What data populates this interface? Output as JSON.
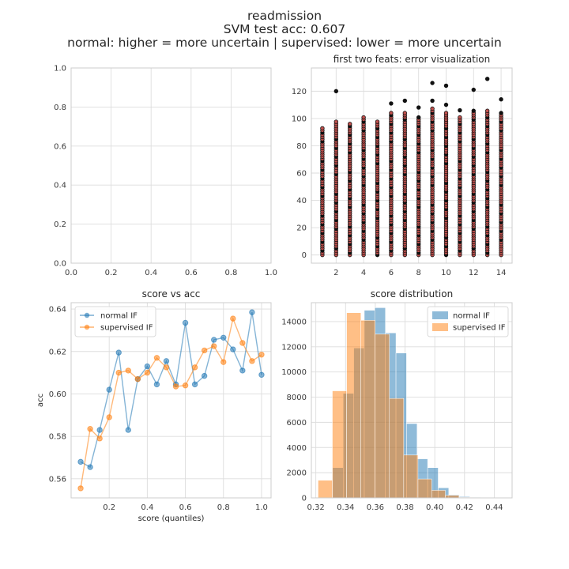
{
  "suptitle": {
    "line1": "readmission",
    "line2": "SVM test acc: 0.607",
    "line3": "normal: higher = more uncertain | supervised: lower = more uncertain"
  },
  "colors": {
    "normal": "#1f77b4",
    "supervised": "#ff7f0e",
    "grid": "#dddddd",
    "axes_edge": "#cccccc",
    "text": "#262626",
    "tick_text": "#3a3a3a"
  },
  "chart_data": [
    {
      "id": "empty",
      "type": "scatter",
      "title": "",
      "xlim": [
        0,
        1
      ],
      "ylim": [
        0,
        1
      ],
      "xticks": [
        0.0,
        0.2,
        0.4,
        0.6,
        0.8,
        1.0
      ],
      "yticks": [
        0.0,
        0.2,
        0.4,
        0.6,
        0.8,
        1.0
      ],
      "xtick_labels": [
        "0.0",
        "0.2",
        "0.4",
        "0.6",
        "0.8",
        "1.0"
      ],
      "ytick_labels": [
        "0.0",
        "0.2",
        "0.4",
        "0.6",
        "0.8",
        "1.0"
      ],
      "grid": true
    },
    {
      "id": "errviz",
      "type": "scatter",
      "title": "first two feats: error visualization",
      "xlim": [
        0.2,
        14.8
      ],
      "ylim": [
        -6,
        137
      ],
      "xticks": [
        2,
        4,
        6,
        8,
        10,
        12,
        14
      ],
      "yticks": [
        0,
        20,
        40,
        60,
        80,
        100,
        120
      ],
      "xtick_labels": [
        "2",
        "4",
        "6",
        "8",
        "10",
        "12",
        "14"
      ],
      "ytick_labels": [
        "0",
        "20",
        "40",
        "60",
        "80",
        "100",
        "120"
      ],
      "grid": true,
      "point_colors": {
        "correct": "#111111",
        "error": "#c0504d"
      },
      "columns": [
        {
          "x": 1,
          "ymax": 94,
          "outliers": []
        },
        {
          "x": 2,
          "ymax": 98,
          "outliers": [
            120
          ]
        },
        {
          "x": 3,
          "ymax": 97,
          "outliers": []
        },
        {
          "x": 4,
          "ymax": 102,
          "outliers": []
        },
        {
          "x": 5,
          "ymax": 98,
          "outliers": []
        },
        {
          "x": 6,
          "ymax": 104,
          "outliers": [
            111
          ]
        },
        {
          "x": 7,
          "ymax": 104,
          "outliers": [
            113
          ]
        },
        {
          "x": 8,
          "ymax": 102,
          "outliers": [
            108
          ]
        },
        {
          "x": 9,
          "ymax": 108,
          "outliers": [
            126,
            113
          ]
        },
        {
          "x": 10,
          "ymax": 104,
          "outliers": [
            124,
            110
          ]
        },
        {
          "x": 11,
          "ymax": 102,
          "outliers": [
            106
          ]
        },
        {
          "x": 12,
          "ymax": 106,
          "outliers": [
            121
          ]
        },
        {
          "x": 13,
          "ymax": 106,
          "outliers": [
            129
          ]
        },
        {
          "x": 14,
          "ymax": 104,
          "outliers": [
            114
          ]
        }
      ]
    },
    {
      "id": "scoreacc",
      "type": "line",
      "title": "score vs acc",
      "xlabel": "score (quantiles)",
      "ylabel": "acc",
      "xlim": [
        0.0,
        1.05
      ],
      "ylim": [
        0.551,
        0.643
      ],
      "xticks": [
        0.2,
        0.4,
        0.6,
        0.8,
        1.0
      ],
      "yticks": [
        0.56,
        0.58,
        0.6,
        0.62,
        0.64
      ],
      "xtick_labels": [
        "0.2",
        "0.4",
        "0.6",
        "0.8",
        "1.0"
      ],
      "ytick_labels": [
        "0.56",
        "0.58",
        "0.60",
        "0.62",
        "0.64"
      ],
      "grid": true,
      "legend": "top-left",
      "x": [
        0.05,
        0.1,
        0.15,
        0.2,
        0.25,
        0.3,
        0.35,
        0.4,
        0.45,
        0.5,
        0.55,
        0.6,
        0.65,
        0.7,
        0.75,
        0.8,
        0.85,
        0.9,
        0.95,
        1.0
      ],
      "series": [
        {
          "name": "normal IF",
          "color": "#1f77b4",
          "values": [
            0.568,
            0.5655,
            0.583,
            0.602,
            0.6195,
            0.583,
            0.607,
            0.613,
            0.6045,
            0.6155,
            0.6045,
            0.6335,
            0.6045,
            0.6085,
            0.6255,
            0.6265,
            0.621,
            0.611,
            0.6385,
            0.609
          ]
        },
        {
          "name": "supervised IF",
          "color": "#ff7f0e",
          "values": [
            0.5555,
            0.5835,
            0.579,
            0.589,
            0.61,
            0.611,
            0.607,
            0.61,
            0.617,
            0.6125,
            0.6035,
            0.604,
            0.6125,
            0.6205,
            0.6225,
            0.615,
            0.6355,
            0.624,
            0.6155,
            0.6185
          ]
        }
      ]
    },
    {
      "id": "scoredist",
      "type": "bar",
      "title": "score distribution",
      "xlim": [
        0.317,
        0.452
      ],
      "ylim": [
        0,
        15500
      ],
      "xticks": [
        0.32,
        0.34,
        0.36,
        0.38,
        0.4,
        0.42,
        0.44
      ],
      "yticks": [
        0,
        2000,
        4000,
        6000,
        8000,
        10000,
        12000,
        14000
      ],
      "xtick_labels": [
        "0.32",
        "0.34",
        "0.36",
        "0.38",
        "0.40",
        "0.42",
        "0.44"
      ],
      "ytick_labels": [
        "0",
        "2000",
        "4000",
        "6000",
        "8000",
        "10000",
        "12000",
        "14000"
      ],
      "grid": true,
      "legend": "top-right",
      "series": [
        {
          "name": "normal IF",
          "color": "#1f77b4",
          "edges": [
            0.3313,
            0.3384,
            0.3455,
            0.3526,
            0.3597,
            0.3668,
            0.3739,
            0.381,
            0.3881,
            0.3952,
            0.4023,
            0.4094,
            0.4165,
            0.4236,
            0.4307,
            0.4378
          ],
          "counts": [
            2400,
            8300,
            11900,
            14900,
            15100,
            13100,
            11500,
            5900,
            3100,
            2400,
            800,
            250,
            100,
            40,
            10
          ]
        },
        {
          "name": "supervised IF",
          "color": "#ff7f0e",
          "edges": [
            0.3215,
            0.3311,
            0.3407,
            0.3503,
            0.3599,
            0.3695,
            0.3791,
            0.3887,
            0.3979,
            0.4071,
            0.4163,
            0.4255
          ],
          "counts": [
            1400,
            8500,
            14700,
            14100,
            13000,
            7900,
            3400,
            1500,
            600,
            200,
            40
          ]
        }
      ]
    }
  ]
}
